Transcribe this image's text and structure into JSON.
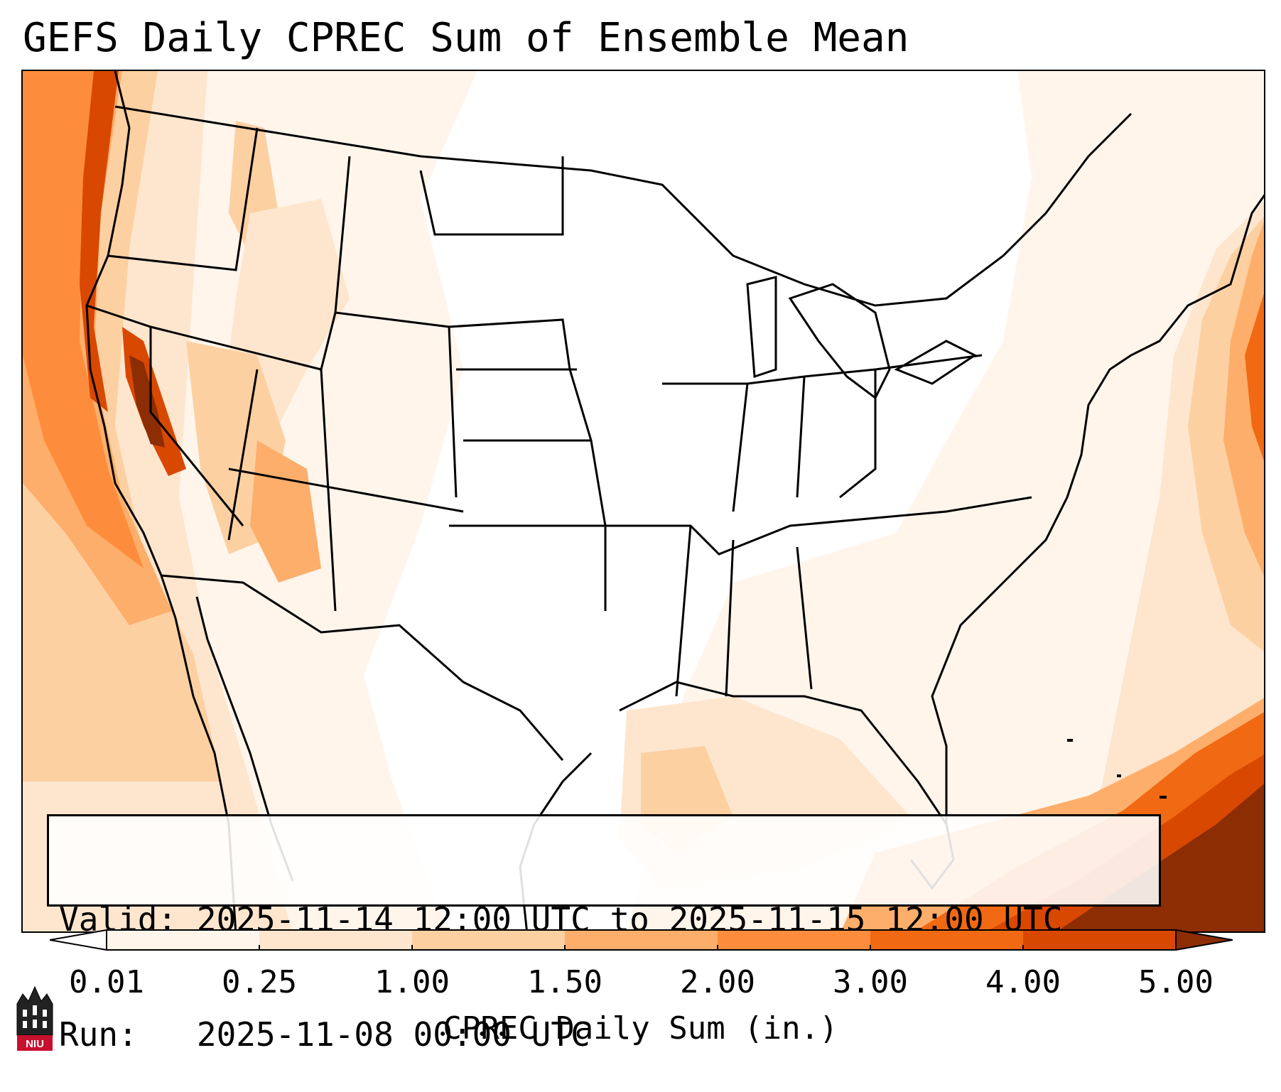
{
  "title": "GEFS Daily CPREC Sum of Ensemble Mean",
  "info": {
    "valid_label": "Valid:",
    "valid_text": "2025-11-14 12:00 UTC to 2025-11-15 12:00 UTC",
    "run_label": "Run:",
    "run_text": "2025-11-08 00:00 UTC"
  },
  "colorbar": {
    "ticks": [
      "0.01",
      "0.25",
      "1.00",
      "1.50",
      "2.00",
      "3.00",
      "4.00",
      "5.00"
    ],
    "label": "CPREC Daily Sum (in.)",
    "colors": [
      "#fff5eb",
      "#fee6ce",
      "#fdd0a2",
      "#fdae6b",
      "#fd8d3c",
      "#f16913",
      "#d94801",
      "#8c2d04"
    ],
    "extend_min_color": "#ffffff",
    "extend_max_color": "#8c2d04"
  },
  "logo": {
    "text": "NIU",
    "color": "#c8102e"
  },
  "map": {
    "region": "Contiguous United States",
    "variable": "CPREC"
  }
}
